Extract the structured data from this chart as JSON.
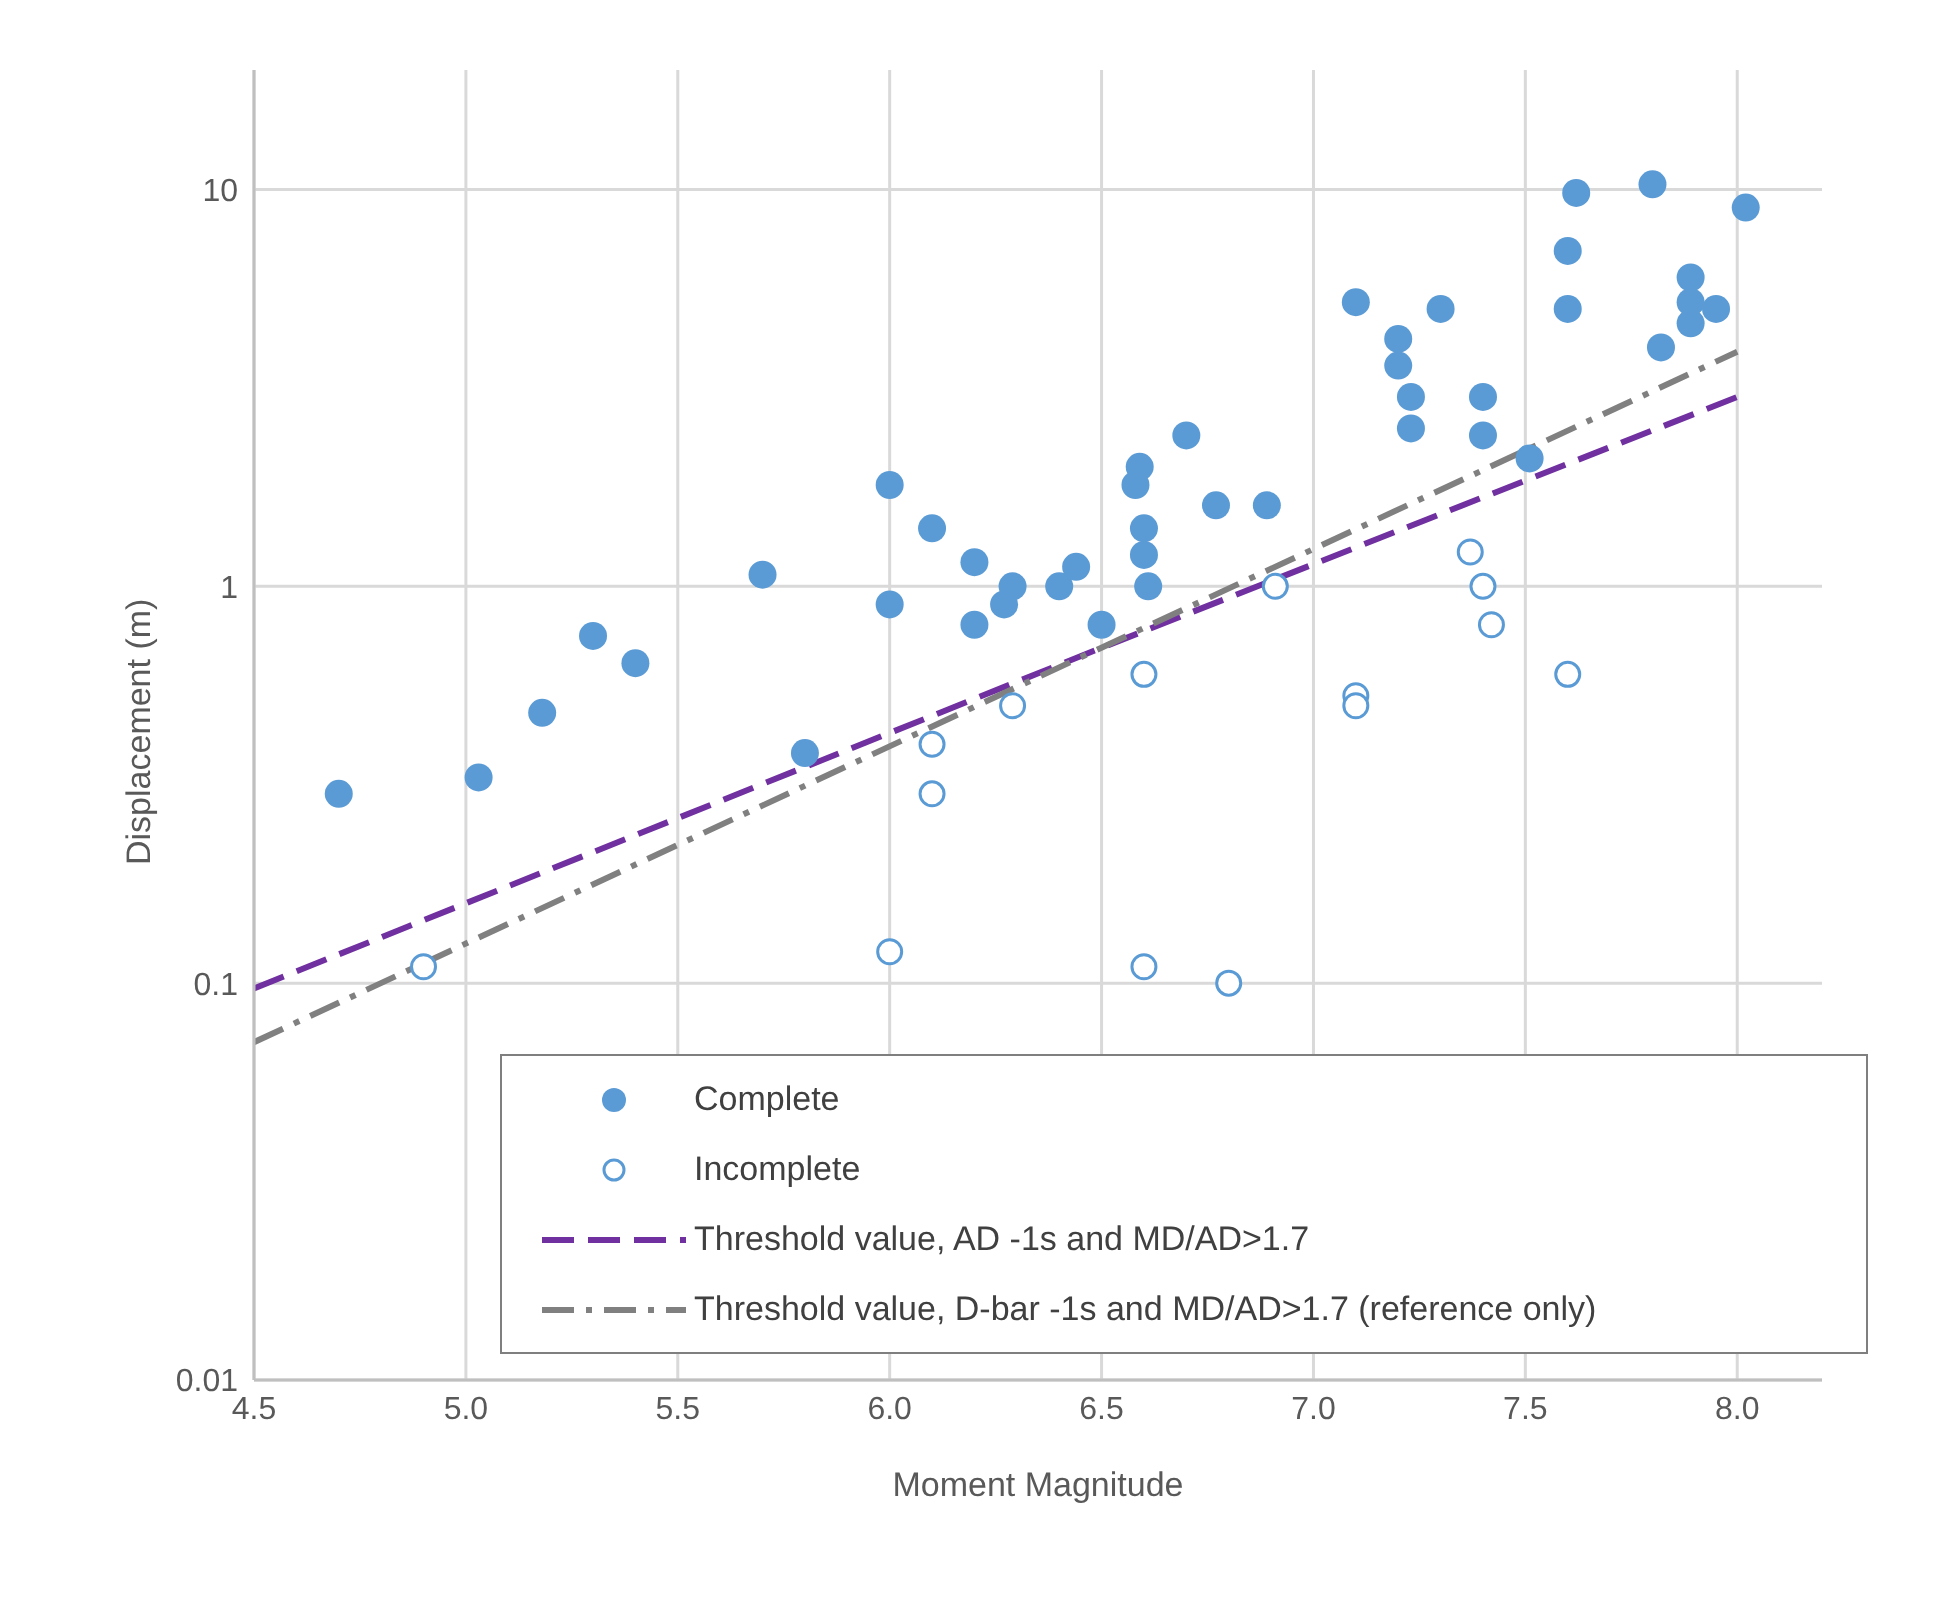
{
  "chart_data": {
    "type": "scatter",
    "xlabel": "Moment Magnitude",
    "ylabel": "Displacement (m)",
    "log": "y",
    "grid": true,
    "legend": "bottom right",
    "xlim": [
      4.5,
      8.2
    ],
    "xticks": [
      4.5,
      {
        "value": 5,
        "label": "5.0"
      },
      5.5,
      {
        "value": 6,
        "label": "6.0"
      },
      6.5,
      {
        "value": 7,
        "label": "7.0"
      },
      7.5,
      {
        "value": 8,
        "label": "8.0"
      }
    ],
    "ylim": [
      0.01,
      20
    ],
    "yticks": [
      0.01,
      0.1,
      1,
      10
    ],
    "series": [
      {
        "name": "Complete",
        "marker": "circle",
        "color": "#5b9bd5",
        "x": [
          4.7,
          5.03,
          5.18,
          5.3,
          5.4,
          5.7,
          5.8,
          6.0,
          6.0,
          6.1,
          6.2,
          6.2,
          6.27,
          6.29,
          6.4,
          6.44,
          6.5,
          6.58,
          6.59,
          6.6,
          6.6,
          6.61,
          6.7,
          6.77,
          6.89,
          7.1,
          7.2,
          7.2,
          7.23,
          7.23,
          7.3,
          7.4,
          7.4,
          7.51,
          7.6,
          7.6,
          7.62,
          7.8,
          7.82,
          7.89,
          7.89,
          7.89,
          7.95,
          8.02
        ],
        "values": [
          0.3,
          0.33,
          0.48,
          0.75,
          0.64,
          1.07,
          0.38,
          1.8,
          0.9,
          1.4,
          1.15,
          0.8,
          0.9,
          1.0,
          1.0,
          1.12,
          0.8,
          1.8,
          2.0,
          1.4,
          1.2,
          1.0,
          2.4,
          1.6,
          1.6,
          5.2,
          4.2,
          3.6,
          3.0,
          2.5,
          5.0,
          3.0,
          2.4,
          2.1,
          7.0,
          5.0,
          9.8,
          10.3,
          4.0,
          6.0,
          5.2,
          4.6,
          5.0,
          9.0
        ]
      },
      {
        "name": "Incomplete",
        "marker": "circle",
        "color": "#5b9bd5",
        "x": [
          4.9,
          6.0,
          6.1,
          6.1,
          6.29,
          6.6,
          6.6,
          6.8,
          6.91,
          7.1,
          7.1,
          7.37,
          7.4,
          7.42,
          7.6
        ],
        "values": [
          0.11,
          0.12,
          0.4,
          0.3,
          0.5,
          0.6,
          0.11,
          0.1,
          1.0,
          0.53,
          0.5,
          1.22,
          1.0,
          0.8,
          0.6
        ]
      },
      {
        "name": "Threshold value, AD -1s and MD/AD>1.7",
        "type": "line",
        "marker": "none",
        "color": "#7030a0",
        "line_style": "dashed",
        "x": [
          4.5,
          6.5,
          8.0
        ],
        "values": [
          0.097,
          0.7,
          3.0
        ]
      },
      {
        "name": "Threshold value, D-bar -1s and MD/AD>1.7 (reference only)",
        "type": "line",
        "marker": "none",
        "color": "#808080",
        "line_style": "dashed",
        "x": [
          4.5,
          8.0
        ],
        "values": [
          0.071,
          3.9
        ]
      }
    ]
  }
}
